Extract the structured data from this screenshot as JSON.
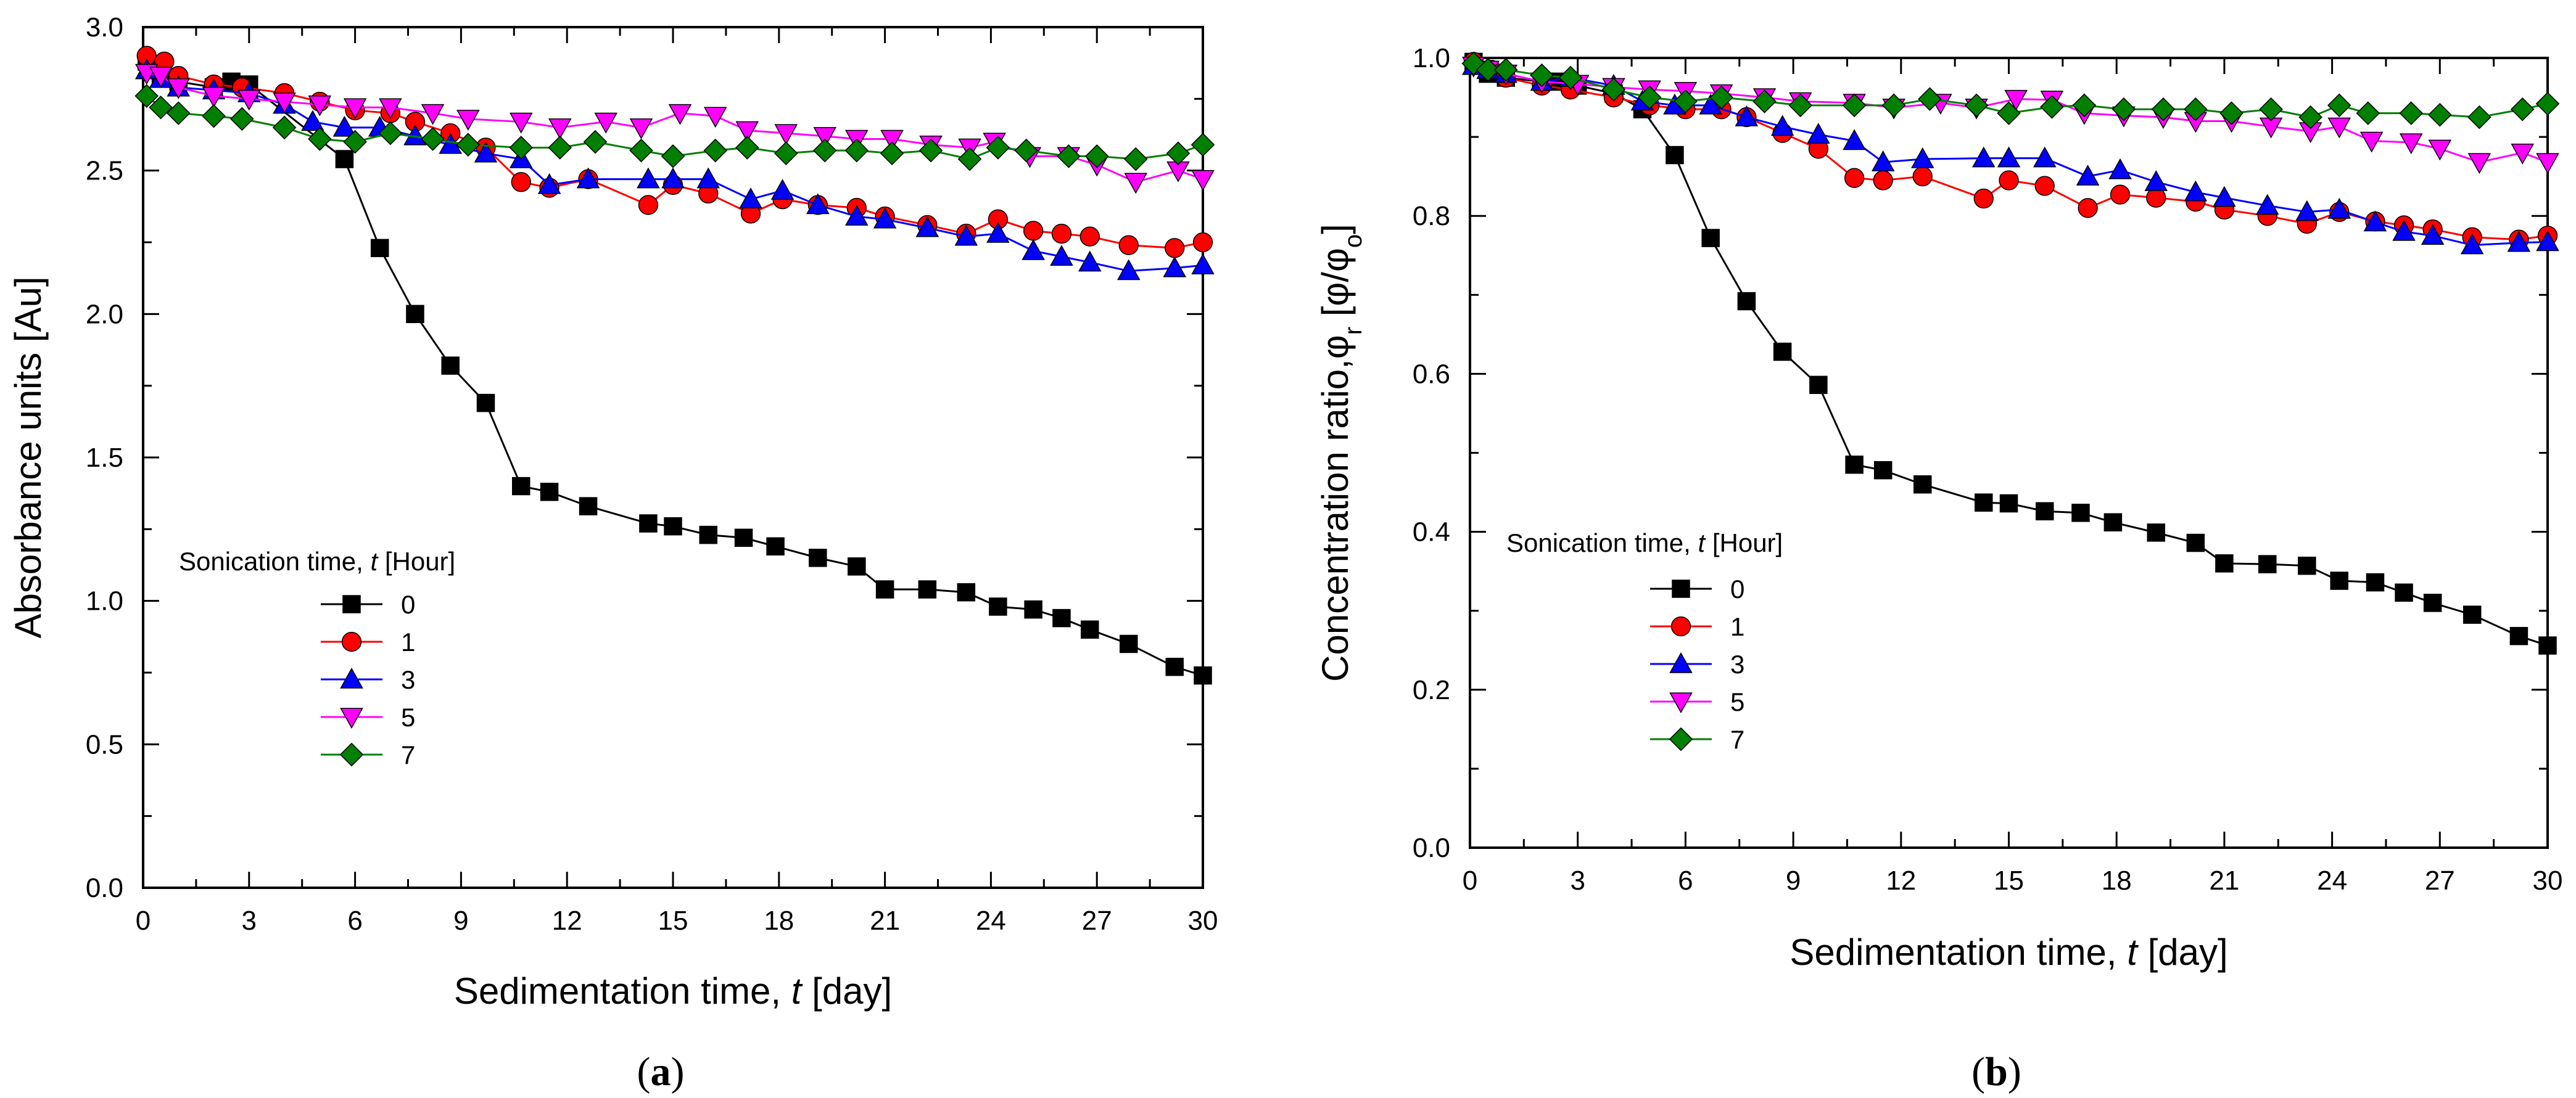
{
  "chart_data": [
    {
      "panel": "a",
      "type": "line",
      "panel_label_open": "(",
      "panel_label": "a",
      "panel_label_close": ")",
      "xlabel": "Sedimentation time, ",
      "xlabel_var": "t",
      "xlabel_unit": " [day]",
      "ylabel": "Absorbance units [Au]",
      "xlim": [
        0,
        30
      ],
      "ylim": [
        0,
        3.0
      ],
      "xticks": [
        "0",
        "3",
        "6",
        "9",
        "12",
        "15",
        "18",
        "21",
        "24",
        "27",
        "30"
      ],
      "yticks": [
        "0.0",
        "0.5",
        "1.0",
        "1.5",
        "2.0",
        "2.5",
        "3.0"
      ],
      "legend": {
        "title": "Sonication time, ",
        "title_var": "t",
        "title_unit": " [Hour]",
        "entries": [
          "0",
          "1",
          "3",
          "5",
          "7"
        ]
      },
      "series": [
        {
          "name": "0",
          "marker": "square",
          "color": "#000000",
          "x": [
            0.1,
            0.5,
            1,
            2,
            2.5,
            3,
            5.7,
            6.7,
            7.7,
            8.7,
            9.7,
            10.7,
            11.5,
            12.6,
            14.3,
            15,
            16,
            17,
            17.9,
            19.1,
            20.2,
            21,
            22.2,
            23.3,
            24.2,
            25.2,
            26,
            26.8,
            27.9,
            29.2,
            30
          ],
          "y": [
            2.88,
            2.83,
            2.81,
            2.79,
            2.81,
            2.8,
            2.54,
            2.23,
            2.0,
            1.82,
            1.69,
            1.4,
            1.38,
            1.33,
            1.27,
            1.26,
            1.23,
            1.22,
            1.19,
            1.15,
            1.12,
            1.04,
            1.04,
            1.03,
            0.98,
            0.97,
            0.94,
            0.9,
            0.85,
            0.77,
            0.74
          ]
        },
        {
          "name": "1",
          "marker": "circle",
          "color": "#ff0000",
          "x": [
            0.1,
            0.6,
            1,
            2,
            2.8,
            4,
            5,
            6,
            7,
            7.7,
            8.7,
            9.7,
            10.7,
            11.5,
            12.6,
            14.3,
            15,
            16,
            17.2,
            18.1,
            19.1,
            20.2,
            21,
            22.2,
            23.3,
            24.2,
            25.2,
            26,
            26.8,
            27.9,
            29.2,
            30
          ],
          "y": [
            2.9,
            2.88,
            2.83,
            2.8,
            2.79,
            2.77,
            2.74,
            2.71,
            2.7,
            2.67,
            2.63,
            2.58,
            2.46,
            2.44,
            2.47,
            2.38,
            2.45,
            2.42,
            2.35,
            2.4,
            2.38,
            2.37,
            2.34,
            2.31,
            2.28,
            2.33,
            2.29,
            2.28,
            2.27,
            2.24,
            2.23,
            2.25
          ]
        },
        {
          "name": "3",
          "marker": "triangle-up",
          "color": "#0000ff",
          "x": [
            0.1,
            0.5,
            1,
            2,
            3,
            4,
            4.8,
            5.7,
            6.7,
            7.7,
            8.7,
            9.7,
            10.7,
            11.5,
            12.6,
            14.3,
            15,
            16,
            17.2,
            18.1,
            19.1,
            20.2,
            21,
            22.2,
            23.3,
            24.2,
            25.2,
            26,
            26.8,
            27.9,
            29.2,
            30
          ],
          "y": [
            2.85,
            2.82,
            2.79,
            2.78,
            2.77,
            2.73,
            2.67,
            2.65,
            2.65,
            2.62,
            2.59,
            2.56,
            2.54,
            2.45,
            2.47,
            2.47,
            2.47,
            2.47,
            2.4,
            2.43,
            2.38,
            2.34,
            2.33,
            2.3,
            2.27,
            2.28,
            2.22,
            2.2,
            2.18,
            2.15,
            2.16,
            2.17
          ]
        },
        {
          "name": "5",
          "marker": "triangle-down",
          "color": "#ff00ff",
          "x": [
            0.1,
            0.5,
            1,
            2,
            3,
            4,
            5,
            6,
            7,
            8.2,
            9.2,
            10.7,
            11.8,
            13.1,
            14.1,
            15.2,
            16.2,
            17.1,
            18.2,
            19.3,
            20.2,
            21.2,
            22.3,
            23.4,
            24.1,
            25.1,
            26.2,
            27,
            28.1,
            29.3,
            30
          ],
          "y": [
            2.84,
            2.83,
            2.79,
            2.76,
            2.75,
            2.74,
            2.73,
            2.72,
            2.72,
            2.7,
            2.68,
            2.67,
            2.65,
            2.67,
            2.65,
            2.7,
            2.69,
            2.64,
            2.63,
            2.62,
            2.61,
            2.61,
            2.59,
            2.58,
            2.6,
            2.55,
            2.55,
            2.52,
            2.46,
            2.5,
            2.47
          ]
        },
        {
          "name": "7",
          "marker": "diamond",
          "color": "#007f00",
          "x": [
            0.1,
            0.5,
            1,
            2,
            2.8,
            4,
            5,
            6,
            7,
            8.2,
            9.2,
            10.7,
            11.8,
            12.8,
            14.1,
            15,
            16.2,
            17.1,
            18.2,
            19.3,
            20.2,
            21.2,
            22.3,
            23.4,
            24.2,
            25,
            26.2,
            27,
            28.1,
            29.3,
            30
          ],
          "y": [
            2.76,
            2.72,
            2.7,
            2.69,
            2.68,
            2.65,
            2.61,
            2.6,
            2.63,
            2.61,
            2.59,
            2.58,
            2.58,
            2.6,
            2.57,
            2.55,
            2.57,
            2.58,
            2.56,
            2.57,
            2.57,
            2.56,
            2.57,
            2.54,
            2.58,
            2.57,
            2.55,
            2.55,
            2.54,
            2.56,
            2.59
          ]
        }
      ]
    },
    {
      "panel": "b",
      "type": "line",
      "panel_label_open": "(",
      "panel_label": "b",
      "panel_label_close": ")",
      "xlabel": "Sedimentation time, ",
      "xlabel_var": "t",
      "xlabel_unit": " [day]",
      "ylabel": "Concentration ratio,φ",
      "ylabel_sub": "r",
      "ylabel_tail": " [φ/φ",
      "ylabel_sub2": "o",
      "ylabel_end": "]",
      "xlim": [
        0,
        30
      ],
      "ylim": [
        0,
        1.0
      ],
      "xticks": [
        "0",
        "3",
        "6",
        "9",
        "12",
        "15",
        "18",
        "21",
        "24",
        "27",
        "30"
      ],
      "yticks": [
        "0.0",
        "0.2",
        "0.4",
        "0.6",
        "0.8",
        "1.0"
      ],
      "legend": {
        "title": "Sonication time, ",
        "title_var": "t",
        "title_unit": " [Hour]",
        "entries": [
          "0",
          "1",
          "3",
          "5",
          "7"
        ]
      },
      "series": [
        {
          "name": "0",
          "marker": "square",
          "color": "#000000",
          "x": [
            0.1,
            0.5,
            1,
            2,
            2.5,
            3,
            4,
            4.8,
            5.7,
            6.7,
            7.7,
            8.7,
            9.7,
            10.7,
            11.5,
            12.6,
            14.3,
            15,
            16,
            17,
            17.9,
            19.1,
            20.2,
            21,
            22.2,
            23.3,
            24.2,
            25.2,
            26,
            26.8,
            27.9,
            29.2,
            30
          ],
          "y": [
            0.995,
            0.98,
            0.975,
            0.97,
            0.97,
            0.965,
            0.955,
            0.935,
            0.877,
            0.772,
            0.692,
            0.628,
            0.586,
            0.485,
            0.478,
            0.46,
            0.437,
            0.436,
            0.426,
            0.424,
            0.412,
            0.399,
            0.386,
            0.36,
            0.359,
            0.357,
            0.338,
            0.336,
            0.323,
            0.31,
            0.295,
            0.268,
            0.256
          ]
        },
        {
          "name": "1",
          "marker": "circle",
          "color": "#ff0000",
          "x": [
            0.1,
            0.6,
            1,
            2,
            2.8,
            4,
            5,
            6,
            7,
            7.7,
            8.7,
            9.7,
            10.7,
            11.5,
            12.6,
            14.3,
            15,
            16,
            17.2,
            18.1,
            19.1,
            20.2,
            21,
            22.2,
            23.3,
            24.2,
            25.2,
            26,
            26.8,
            27.9,
            29.2,
            30
          ],
          "y": [
            0.995,
            0.985,
            0.975,
            0.965,
            0.96,
            0.95,
            0.94,
            0.935,
            0.935,
            0.925,
            0.905,
            0.885,
            0.848,
            0.845,
            0.85,
            0.822,
            0.845,
            0.838,
            0.81,
            0.827,
            0.823,
            0.818,
            0.808,
            0.8,
            0.79,
            0.805,
            0.793,
            0.788,
            0.783,
            0.773,
            0.77,
            0.775
          ]
        },
        {
          "name": "3",
          "marker": "triangle-up",
          "color": "#0000ff",
          "x": [
            0.1,
            0.5,
            1,
            2,
            2.8,
            4,
            4.8,
            5.7,
            6.7,
            7.7,
            8.7,
            9.7,
            10.7,
            11.5,
            12.6,
            14.3,
            15,
            16,
            17.2,
            18.1,
            19.1,
            20.2,
            21,
            22.2,
            23.3,
            24.2,
            25.2,
            26,
            26.8,
            27.9,
            29.2,
            30
          ],
          "y": [
            0.99,
            0.985,
            0.98,
            0.97,
            0.975,
            0.965,
            0.945,
            0.94,
            0.94,
            0.925,
            0.913,
            0.903,
            0.895,
            0.868,
            0.872,
            0.873,
            0.873,
            0.873,
            0.85,
            0.858,
            0.843,
            0.83,
            0.823,
            0.813,
            0.805,
            0.808,
            0.792,
            0.78,
            0.775,
            0.763,
            0.766,
            0.767
          ]
        },
        {
          "name": "5",
          "marker": "triangle-down",
          "color": "#ff00ff",
          "x": [
            0.1,
            0.5,
            1,
            2,
            3,
            4,
            5,
            6,
            7,
            8.2,
            9.2,
            10.7,
            11.8,
            13.1,
            14.1,
            15.2,
            16.2,
            17.1,
            18.2,
            19.3,
            20.2,
            21.2,
            22.3,
            23.4,
            24.2,
            25.1,
            26.2,
            27,
            28.1,
            29.3,
            30
          ],
          "y": [
            0.99,
            0.985,
            0.98,
            0.97,
            0.967,
            0.963,
            0.96,
            0.958,
            0.955,
            0.95,
            0.945,
            0.943,
            0.937,
            0.943,
            0.937,
            0.948,
            0.947,
            0.93,
            0.927,
            0.925,
            0.92,
            0.92,
            0.913,
            0.907,
            0.913,
            0.895,
            0.893,
            0.885,
            0.868,
            0.88,
            0.868
          ]
        },
        {
          "name": "7",
          "marker": "diamond",
          "color": "#007f00",
          "x": [
            0.1,
            0.5,
            1,
            2,
            2.8,
            4,
            5,
            6,
            7,
            8.2,
            9.2,
            10.7,
            11.8,
            12.8,
            14.1,
            15,
            16.2,
            17.1,
            18.2,
            19.3,
            20.2,
            21.2,
            22.3,
            23.4,
            24.2,
            25,
            26.2,
            27,
            28.1,
            29.3,
            30
          ],
          "y": [
            0.993,
            0.985,
            0.985,
            0.978,
            0.975,
            0.96,
            0.95,
            0.945,
            0.95,
            0.945,
            0.94,
            0.94,
            0.94,
            0.948,
            0.94,
            0.93,
            0.938,
            0.94,
            0.935,
            0.935,
            0.935,
            0.93,
            0.935,
            0.925,
            0.94,
            0.93,
            0.93,
            0.928,
            0.925,
            0.935,
            0.942
          ]
        }
      ]
    }
  ]
}
